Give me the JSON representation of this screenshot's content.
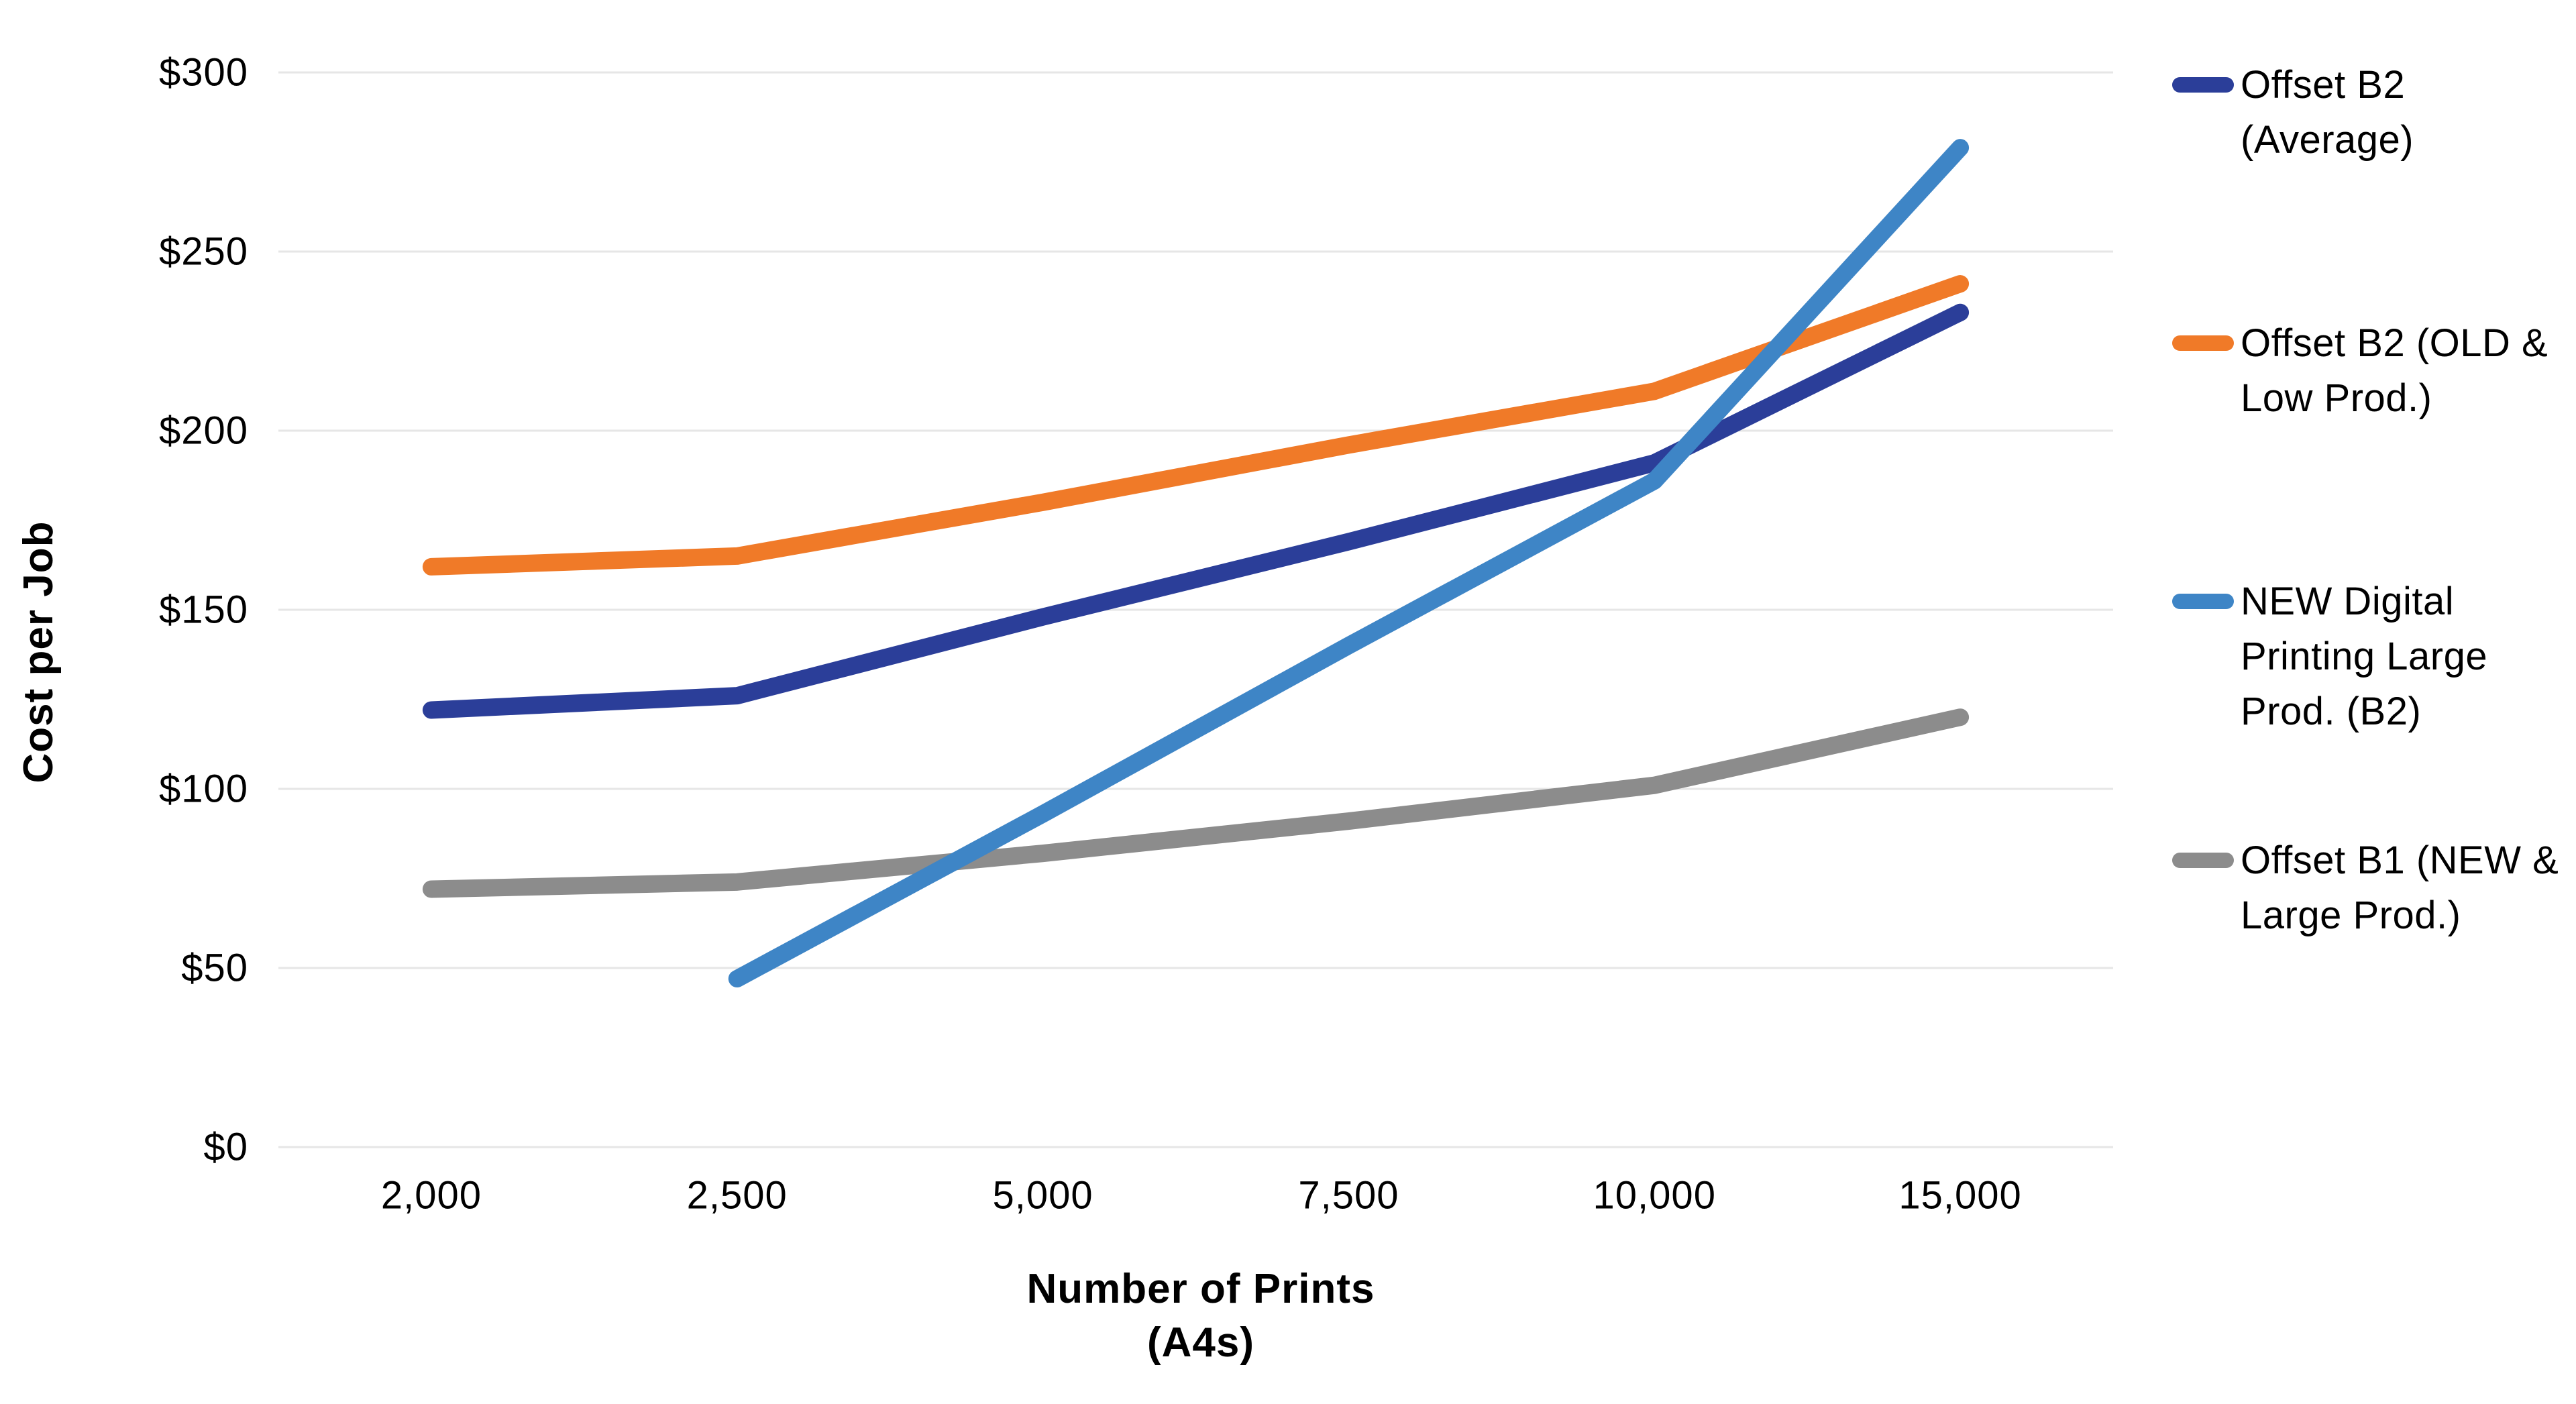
{
  "chart_data": {
    "type": "line",
    "title": "",
    "xlabel_line1": "Number of Prints",
    "xlabel_line2": "(A4s)",
    "ylabel": "Cost per Job",
    "categories": [
      "2,000",
      "2,500",
      "5,000",
      "7,500",
      "10,000",
      "15,000"
    ],
    "x_values": [
      2000,
      2500,
      5000,
      7500,
      10000,
      15000
    ],
    "y_tick_labels": [
      "$300",
      "$250",
      "$200",
      "$150",
      "$100",
      "$50",
      "$0"
    ],
    "ylim": [
      0,
      300
    ],
    "y_tick_step": 50,
    "grid": "horizontal-only",
    "grid_color": "#e6e6e6",
    "legend_position": "right",
    "series": [
      {
        "id": "offset-b2-average",
        "name": "Offset B2 (Average)",
        "color": "#2B3E99",
        "values": [
          122,
          126,
          148,
          169,
          191,
          233
        ]
      },
      {
        "id": "offset-b2-old-low-prod",
        "name": "Offset B2 (OLD & Low Prod.)",
        "color": "#F07A28",
        "values": [
          162,
          165,
          180,
          196,
          211,
          241
        ]
      },
      {
        "id": "new-digital-printing-large-prod-b2",
        "name": "NEW Digital Printing Large Prod. (B2)",
        "color": "#3E85C6",
        "values": [
          null,
          47,
          93,
          140,
          186,
          279
        ]
      },
      {
        "id": "offset-b1-new-large-prod",
        "name": "Offset B1 (NEW & Large Prod.)",
        "color": "#8C8C8C",
        "values": [
          72,
          74,
          82,
          91,
          101,
          120
        ]
      }
    ]
  }
}
